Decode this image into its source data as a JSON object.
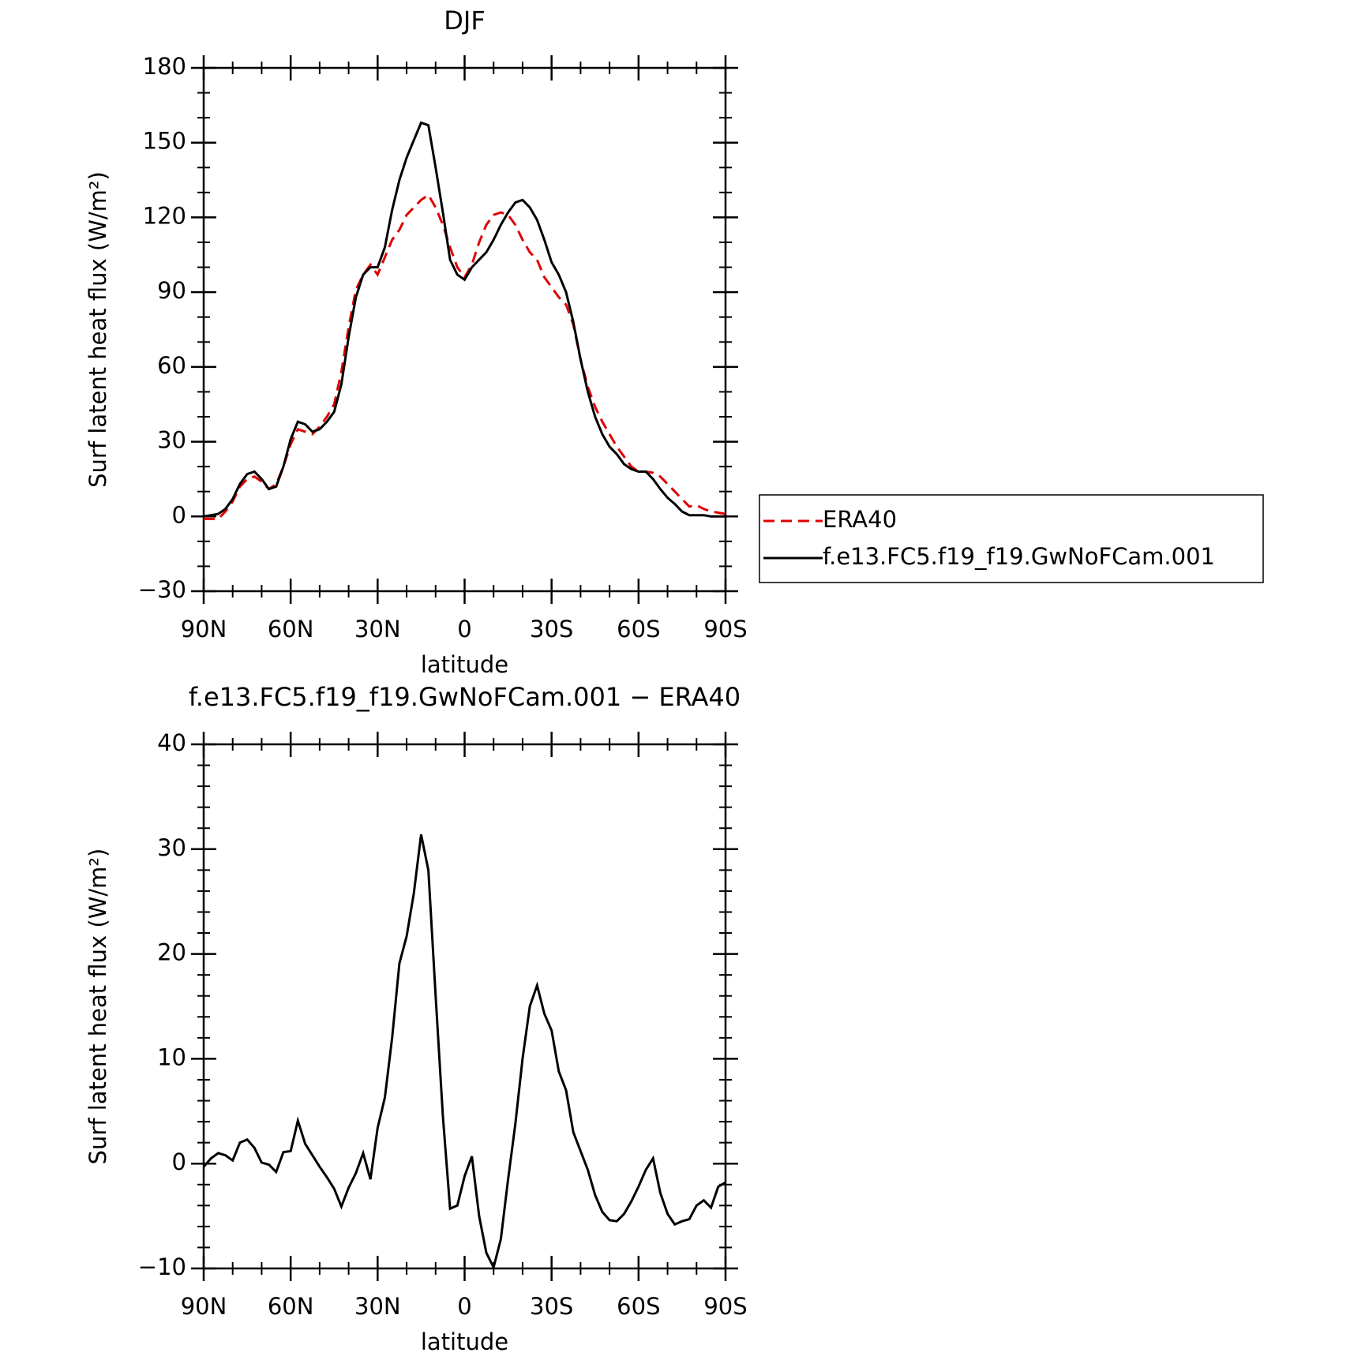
{
  "chart_data": [
    {
      "type": "line",
      "title": "DJF",
      "xlabel": "latitude",
      "ylabel": "Surf latent heat flux (W/m²)",
      "x": [
        90,
        87.5,
        85,
        82.5,
        80,
        77.5,
        75,
        72.5,
        70,
        67.5,
        65,
        62.5,
        60,
        57.5,
        55,
        52.5,
        50,
        47.5,
        45,
        42.5,
        40,
        37.5,
        35,
        32.5,
        30,
        27.5,
        25,
        22.5,
        20,
        17.5,
        15,
        12.5,
        10,
        7.5,
        5,
        2.5,
        0,
        -2.5,
        -5,
        -7.5,
        -10,
        -12.5,
        -15,
        -17.5,
        -20,
        -22.5,
        -25,
        -27.5,
        -30,
        -32.5,
        -35,
        -37.5,
        -40,
        -42.5,
        -45,
        -47.5,
        -50,
        -52.5,
        -55,
        -57.5,
        -60,
        -62.5,
        -65,
        -67.5,
        -70,
        -72.5,
        -75,
        -77.5,
        -80,
        -82.5,
        -85,
        -87.5,
        -90
      ],
      "xlim": [
        90,
        -90
      ],
      "xticks": [
        {
          "value": 90,
          "label": "90N"
        },
        {
          "value": 60,
          "label": "60N"
        },
        {
          "value": 30,
          "label": "30N"
        },
        0,
        {
          "value": -30,
          "label": "30S"
        },
        {
          "value": -60,
          "label": "60S"
        },
        {
          "value": -90,
          "label": "90S"
        }
      ],
      "ylim": [
        -30,
        180
      ],
      "yticks": [
        {
          "value": -30,
          "label": "−30"
        },
        0,
        30,
        60,
        90,
        120,
        150,
        180
      ],
      "legend": "outside right",
      "series": [
        {
          "name": "ERA40",
          "color": "#e00000",
          "dash": true,
          "values": [
            -1,
            -1,
            -1,
            2,
            6,
            12,
            15,
            16,
            14,
            11,
            13,
            20,
            29,
            35,
            34,
            33,
            36,
            40,
            45,
            58,
            76,
            91,
            97,
            101,
            97,
            104,
            111,
            115,
            121,
            124,
            127,
            129,
            124,
            117,
            108,
            100,
            96,
            101,
            110,
            117,
            121,
            122,
            121,
            117,
            111,
            106,
            103,
            96,
            92,
            88,
            85,
            77,
            63,
            52,
            44,
            38,
            33,
            28,
            24,
            20,
            18,
            18,
            17.5,
            16,
            13,
            10,
            7,
            4,
            4.5,
            3,
            2,
            1.5,
            1
          ]
        },
        {
          "name": "f.e13.FC5.f19_f19.GwNoFCam.001",
          "color": "#000000",
          "dash": false,
          "values": [
            0,
            0.5,
            1,
            3,
            7,
            13,
            17,
            18,
            15,
            11,
            12,
            20,
            31,
            38,
            37,
            34,
            35,
            38,
            42,
            53,
            72,
            88,
            97,
            100,
            100,
            108,
            123,
            135,
            144,
            151,
            158,
            157,
            140,
            122,
            103,
            97,
            95,
            100,
            103,
            106,
            111,
            117,
            122,
            126,
            127,
            124,
            119,
            111,
            102,
            97,
            90,
            78,
            63,
            50,
            40,
            33,
            28,
            25,
            21,
            19,
            18,
            18,
            15,
            11,
            7.5,
            5,
            2,
            0.5,
            0.5,
            0.5,
            0,
            0,
            0
          ]
        }
      ]
    },
    {
      "type": "line",
      "title": "f.e13.FC5.f19_f19.GwNoFCam.001 − ERA40",
      "xlabel": "latitude",
      "ylabel": "Surf latent heat flux (W/m²)",
      "x": [
        90,
        87.5,
        85,
        82.5,
        80,
        77.5,
        75,
        72.5,
        70,
        67.5,
        65,
        62.5,
        60,
        57.5,
        55,
        52.5,
        50,
        47.5,
        45,
        42.5,
        40,
        37.5,
        35,
        32.5,
        30,
        27.5,
        25,
        22.5,
        20,
        17.5,
        15,
        12.5,
        10,
        7.5,
        5,
        2.5,
        0,
        -2.5,
        -5,
        -7.5,
        -10,
        -12.5,
        -15,
        -17.5,
        -20,
        -22.5,
        -25,
        -27.5,
        -30,
        -32.5,
        -35,
        -37.5,
        -40,
        -42.5,
        -45,
        -47.5,
        -50,
        -52.5,
        -55,
        -57.5,
        -60,
        -62.5,
        -65,
        -67.5,
        -70,
        -72.5,
        -75,
        -77.5,
        -80,
        -82.5,
        -85,
        -87.5,
        -90
      ],
      "xlim": [
        90,
        -90
      ],
      "xticks": [
        {
          "value": 90,
          "label": "90N"
        },
        {
          "value": 60,
          "label": "60N"
        },
        {
          "value": 30,
          "label": "30N"
        },
        0,
        {
          "value": -30,
          "label": "30S"
        },
        {
          "value": -60,
          "label": "60S"
        },
        {
          "value": -90,
          "label": "90S"
        }
      ],
      "ylim": [
        -10,
        40
      ],
      "yticks": [
        {
          "value": -10,
          "label": "−10"
        },
        0,
        10,
        20,
        30,
        40
      ],
      "series": [
        {
          "color": "#000000",
          "dash": false,
          "values": [
            -0.3,
            0.5,
            1,
            0.8,
            0.3,
            2,
            2.3,
            1.5,
            0.1,
            -0.1,
            -0.8,
            1.1,
            1.2,
            4.1,
            1.9,
            0.8,
            -0.3,
            -1.3,
            -2.4,
            -4.1,
            -2.3,
            -0.9,
            1,
            -1.5,
            3.4,
            6.3,
            12,
            19.1,
            21.7,
            25.8,
            31.4,
            28,
            16,
            4.5,
            -4.3,
            -4,
            -1.2,
            0.7,
            -5,
            -8.5,
            -9.9,
            -7.2,
            -1.5,
            3.8,
            10,
            15,
            17,
            14.3,
            12.7,
            8.8,
            7,
            3,
            1.2,
            -0.6,
            -3,
            -4.6,
            -5.4,
            -5.5,
            -4.8,
            -3.6,
            -2.2,
            -0.6,
            0.5,
            -2.8,
            -4.8,
            -5.8,
            -5.5,
            -5.3,
            -4,
            -3.5,
            -4.2,
            -2.2,
            -1.8
          ]
        }
      ]
    }
  ]
}
